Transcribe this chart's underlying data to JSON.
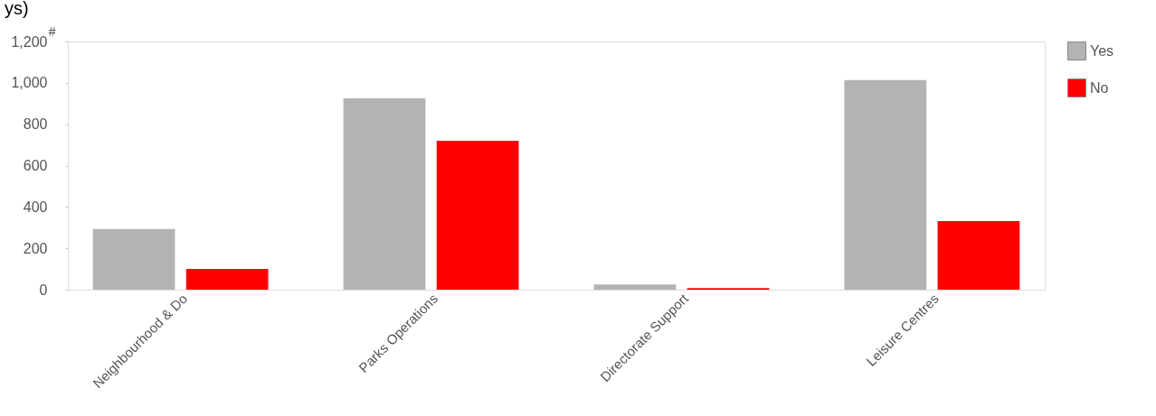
{
  "chart_data": {
    "type": "bar",
    "title": "ys)",
    "ylabel": "#",
    "categories": [
      "Neighbourhood & Do",
      "Parks Operations",
      "Directorate Support",
      "Leisure Centres"
    ],
    "series": [
      {
        "name": "Yes",
        "color": "#b3b3b3",
        "values": [
          293,
          925,
          25,
          1013
        ]
      },
      {
        "name": "No",
        "color": "#ff0000",
        "values": [
          100,
          720,
          8,
          332
        ]
      }
    ],
    "ylim": [
      0,
      1200
    ],
    "yticks": [
      0,
      200,
      400,
      600,
      800,
      {
        "value": 1000,
        "label": "1,000"
      },
      {
        "value": 1200,
        "label": "1,200"
      }
    ],
    "grid": false,
    "legend": "top right"
  }
}
